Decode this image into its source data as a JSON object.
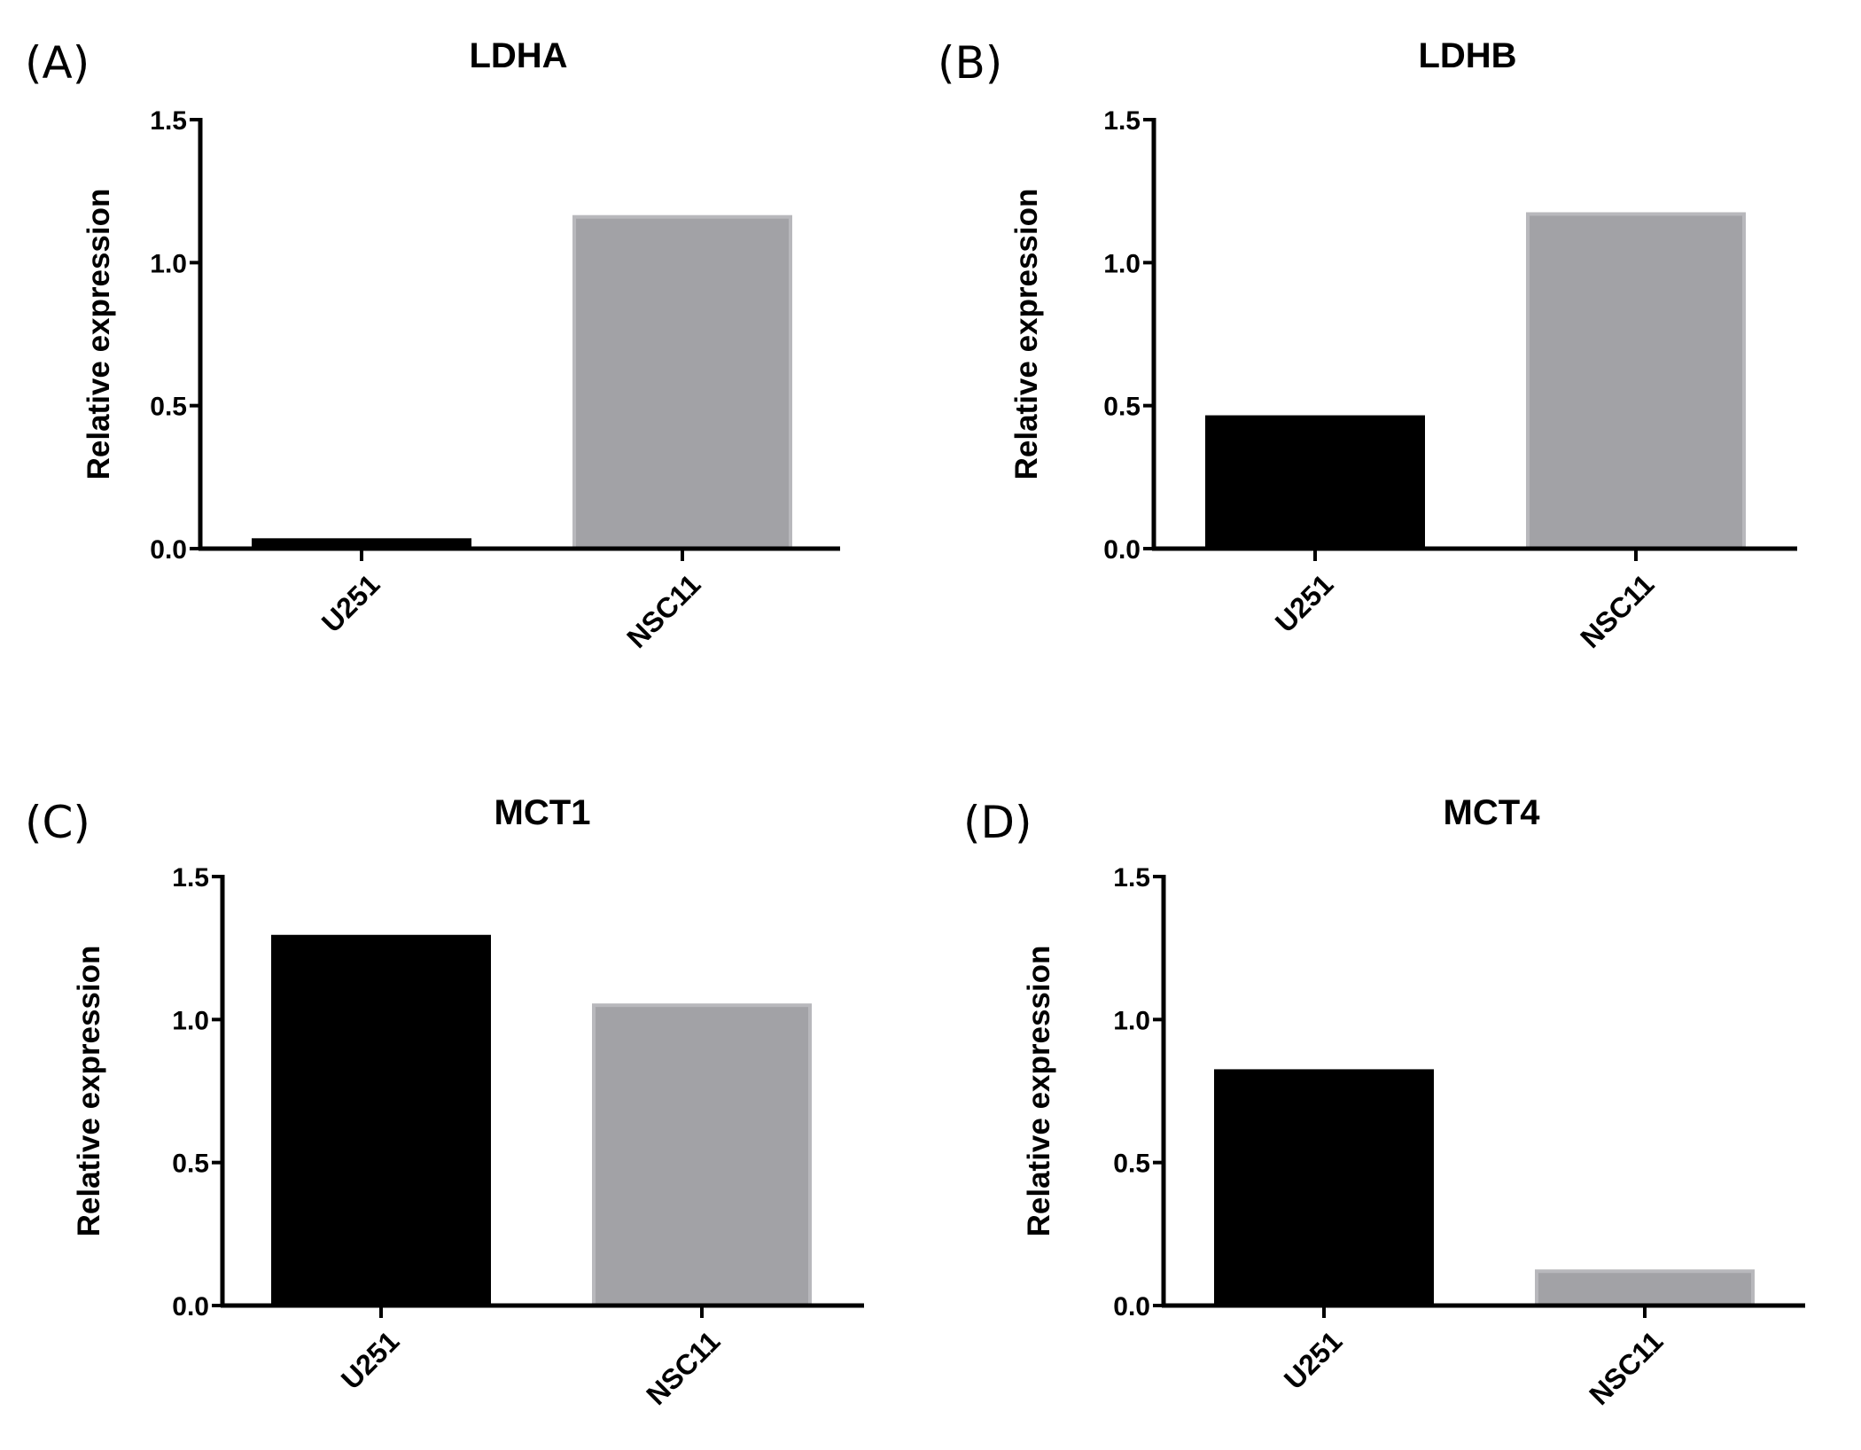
{
  "chart_data": [
    {
      "panel": "(A)",
      "type": "bar",
      "title": "LDHA",
      "categories": [
        "U251",
        "NSC11"
      ],
      "values": [
        0.03,
        1.16
      ],
      "colors": [
        "#000000",
        "#a2a2a6"
      ],
      "xlabel": "",
      "ylabel": "Relative expression",
      "ylim": [
        0,
        1.5
      ],
      "yticks": [
        "0.0",
        "0.5",
        "1.0",
        "1.5"
      ],
      "grid": false
    },
    {
      "panel": "(B)",
      "type": "bar",
      "title": "LDHB",
      "categories": [
        "U251",
        "NSC11"
      ],
      "values": [
        0.46,
        1.17
      ],
      "colors": [
        "#000000",
        "#a2a2a6"
      ],
      "xlabel": "",
      "ylabel": "Relative expression",
      "ylim": [
        0,
        1.5
      ],
      "yticks": [
        "0.0",
        "0.5",
        "1.0",
        "1.5"
      ],
      "grid": false
    },
    {
      "panel": "(C)",
      "type": "bar",
      "title": "MCT1",
      "categories": [
        "U251",
        "NSC11"
      ],
      "values": [
        1.29,
        1.05
      ],
      "colors": [
        "#000000",
        "#a2a2a6"
      ],
      "xlabel": "",
      "ylabel": "Relative expression",
      "ylim": [
        0,
        1.5
      ],
      "yticks": [
        "0.0",
        "0.5",
        "1.0",
        "1.5"
      ],
      "grid": false
    },
    {
      "panel": "(D)",
      "type": "bar",
      "title": "MCT4",
      "categories": [
        "U251",
        "NSC11"
      ],
      "values": [
        0.82,
        0.12
      ],
      "colors": [
        "#000000",
        "#a2a2a6"
      ],
      "xlabel": "",
      "ylabel": "Relative expression",
      "ylim": [
        0,
        1.5
      ],
      "yticks": [
        "0.0",
        "0.5",
        "1.0",
        "1.5"
      ],
      "grid": false
    }
  ]
}
